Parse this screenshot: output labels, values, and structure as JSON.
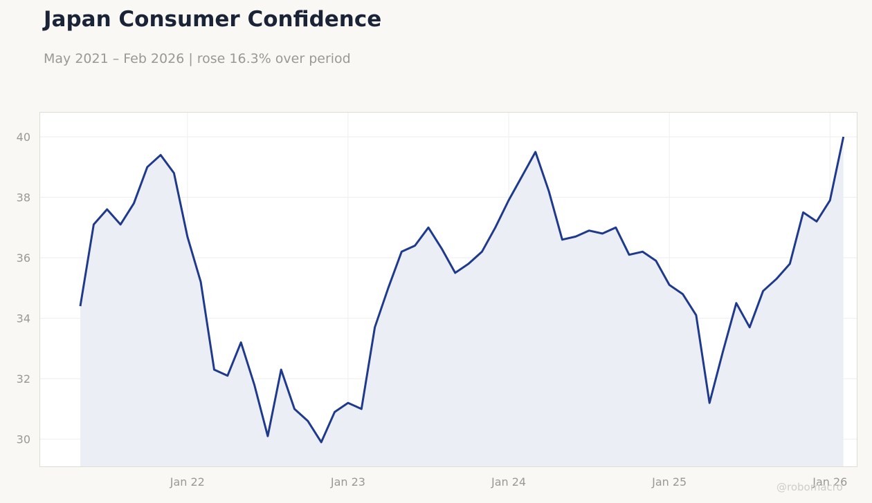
{
  "header": {
    "title": "Japan Consumer Confidence",
    "subtitle": "May 2021 – Feb 2026 | rose 16.3% over period"
  },
  "watermark": "@robomacro",
  "colors": {
    "line": "#1f3a8a",
    "area_fill": "#eceef5",
    "plot_background": "#ffffff",
    "page_background": "#f9f8f5"
  },
  "chart_data": {
    "type": "area",
    "title": "Japan Consumer Confidence",
    "subtitle": "May 2021 – Feb 2026 | rose 16.3% over period",
    "xlabel": "",
    "ylabel": "",
    "x": [
      "2021-05",
      "2021-06",
      "2021-07",
      "2021-08",
      "2021-09",
      "2021-10",
      "2021-11",
      "2021-12",
      "2022-01",
      "2022-02",
      "2022-03",
      "2022-04",
      "2022-05",
      "2022-06",
      "2022-07",
      "2022-08",
      "2022-09",
      "2022-10",
      "2022-11",
      "2022-12",
      "2023-01",
      "2023-02",
      "2023-03",
      "2023-04",
      "2023-05",
      "2023-06",
      "2023-07",
      "2023-08",
      "2023-09",
      "2023-10",
      "2023-11",
      "2023-12",
      "2024-01",
      "2024-02",
      "2024-03",
      "2024-04",
      "2024-05",
      "2024-06",
      "2024-07",
      "2024-08",
      "2024-09",
      "2024-10",
      "2024-11",
      "2024-12",
      "2025-01",
      "2025-02",
      "2025-03",
      "2025-04",
      "2025-05",
      "2025-06",
      "2025-07",
      "2025-08",
      "2025-09",
      "2025-10",
      "2025-11",
      "2025-12",
      "2026-01",
      "2026-02"
    ],
    "series": [
      {
        "values": [
          34.4,
          37.1,
          37.6,
          37.1,
          37.8,
          39.0,
          39.4,
          38.8,
          36.7,
          35.2,
          32.3,
          32.1,
          33.2,
          31.8,
          30.1,
          32.3,
          31.0,
          30.6,
          29.9,
          30.9,
          31.2,
          31.0,
          33.7,
          35.0,
          36.2,
          36.4,
          37.0,
          36.3,
          35.5,
          35.8,
          36.2,
          37.0,
          37.9,
          38.7,
          39.5,
          38.2,
          36.6,
          36.7,
          36.9,
          36.8,
          37.0,
          36.1,
          36.2,
          35.9,
          35.1,
          34.8,
          34.1,
          31.2,
          32.9,
          34.5,
          33.7,
          34.9,
          35.3,
          35.8,
          37.5,
          37.2,
          37.9,
          40.0
        ]
      }
    ],
    "x_ticks": [
      "Jan 22",
      "Jan 23",
      "Jan 24",
      "Jan 25",
      "Jan 26"
    ],
    "y_ticks": [
      30,
      32,
      34,
      36,
      38,
      40
    ],
    "ylim": [
      29.1,
      40.8
    ],
    "xlim": [
      "2021-02",
      "2026-03"
    ],
    "grid": true,
    "legend": "none"
  }
}
